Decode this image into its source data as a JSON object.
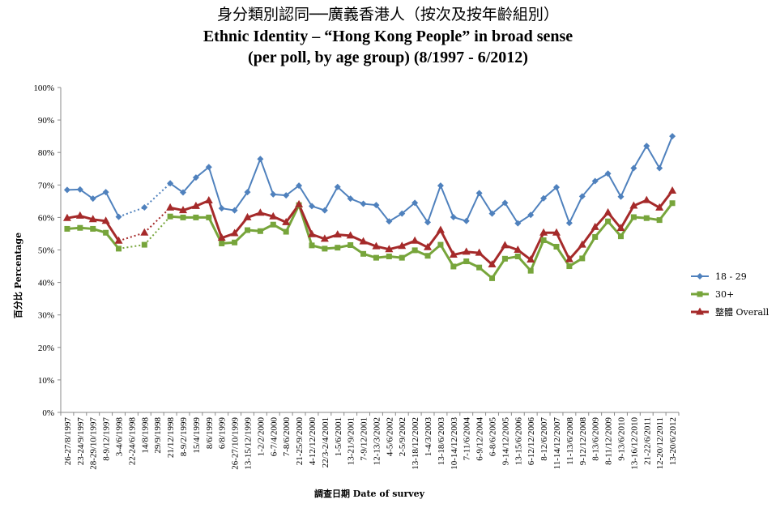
{
  "chart_data": {
    "type": "line",
    "title": "身分類別認同──廣義香港人（按次及按年齡組別）",
    "subtitle_line1": "Ethnic Identity – “Hong Kong People” in broad sense",
    "subtitle_line2": "(per poll, by age group) (8/1997 - 6/2012)",
    "xlabel": "調查日期 Date of survey",
    "ylabel": "百分比 Percentage",
    "ylim": [
      0,
      100
    ],
    "y_ticks": [
      "0%",
      "10%",
      "20%",
      "30%",
      "40%",
      "50%",
      "60%",
      "70%",
      "80%",
      "90%",
      "100%"
    ],
    "grid": false,
    "legend_position": "right",
    "categories": [
      "26-27/8/1997",
      "23-24/9/1997",
      "28-29/10/1997",
      "8-9/12/1997",
      "3-4/6/1998",
      "22-24/6/1998",
      "14/8/1998",
      "29/9/1998",
      "21/12/1998",
      "8-9/2/1999",
      "15/4/1999",
      "8/6/1999",
      "6/8/1999",
      "26-27/10/1999",
      "13-15/12/1999",
      "1-2/2/2000",
      "6-7/4/2000",
      "7-8/6/2000",
      "21-25/9/2000",
      "4-12/12/2000",
      "22/3-2/4/2001",
      "1-5/6/2001",
      "13-21/9/2001",
      "7-9/12/2001",
      "12-13/3/2002",
      "4-5/6/2002",
      "2-5/9/2002",
      "13-18/12/2002",
      "1-4/3/2003",
      "13-18/6/2003",
      "10-14/12/2003",
      "7-11/6/2004",
      "6-9/12/2004",
      "6-8/6/2005",
      "9-14/12/2005",
      "13-15/6/2006",
      "6-12/12/2006",
      "8-12/6/2007",
      "11-14/12/2007",
      "11-13/6/2008",
      "9-12/12/2008",
      "8-13/6/2009",
      "8-11/12/2009",
      "9-13/6/2010",
      "13-16/12/2010",
      "21-22/6/2011",
      "12-20/12/2011",
      "13-20/6/2012"
    ],
    "series": [
      {
        "name": "18 - 29",
        "color": "#4F81BD",
        "marker": "diamond",
        "values": [
          68.5,
          68.6,
          65.8,
          67.8,
          60.2,
          null,
          63.1,
          null,
          70.5,
          67.7,
          72.3,
          75.5,
          62.8,
          62.2,
          67.8,
          78,
          67.1,
          66.8,
          69.8,
          63.5,
          62.2,
          69.4,
          65.8,
          64.2,
          63.8,
          58.8,
          61.2,
          64.5,
          58.5,
          69.8,
          60.1,
          58.9,
          67.5,
          61.2,
          64.5,
          58.2,
          60.8,
          65.9,
          69.3,
          58.3,
          66.5,
          71.2,
          73.5,
          66.4,
          75.2,
          82,
          75.2,
          85
        ]
      },
      {
        "name": "30+",
        "color": "#77A53B",
        "marker": "square",
        "values": [
          56.5,
          56.8,
          56.5,
          55.3,
          50.4,
          null,
          51.6,
          null,
          60.3,
          60,
          60,
          60,
          52,
          52.3,
          56.1,
          55.8,
          57.8,
          55.6,
          63.8,
          51.4,
          50.4,
          50.7,
          51.5,
          48.8,
          47.6,
          48,
          47.6,
          49.9,
          48.2,
          51.6,
          44.9,
          46.5,
          44.6,
          41.3,
          47.3,
          48,
          43.6,
          53,
          51,
          45,
          47.4,
          54,
          58.8,
          54.2,
          60.1,
          59.8,
          59.2,
          64.4
        ]
      },
      {
        "name": "整體 Overall",
        "color": "#A52A2A",
        "marker": "triangle",
        "values": [
          59.8,
          60.5,
          59.4,
          58.9,
          52.8,
          null,
          55.3,
          null,
          63,
          62.2,
          63.5,
          65.2,
          53.7,
          55.1,
          60,
          61.4,
          60.3,
          58.5,
          64,
          54.8,
          53.4,
          54.7,
          54.4,
          52.6,
          51.1,
          50.2,
          51.2,
          52.8,
          50.8,
          56.1,
          48.5,
          49.4,
          49.1,
          45.5,
          51.4,
          50,
          47,
          55.3,
          55.3,
          47.1,
          51.6,
          57,
          61.5,
          56.7,
          63.6,
          65.3,
          63,
          68.2
        ]
      }
    ],
    "dotted_gap_segments": [
      [
        4,
        6
      ],
      [
        6,
        8
      ]
    ]
  }
}
